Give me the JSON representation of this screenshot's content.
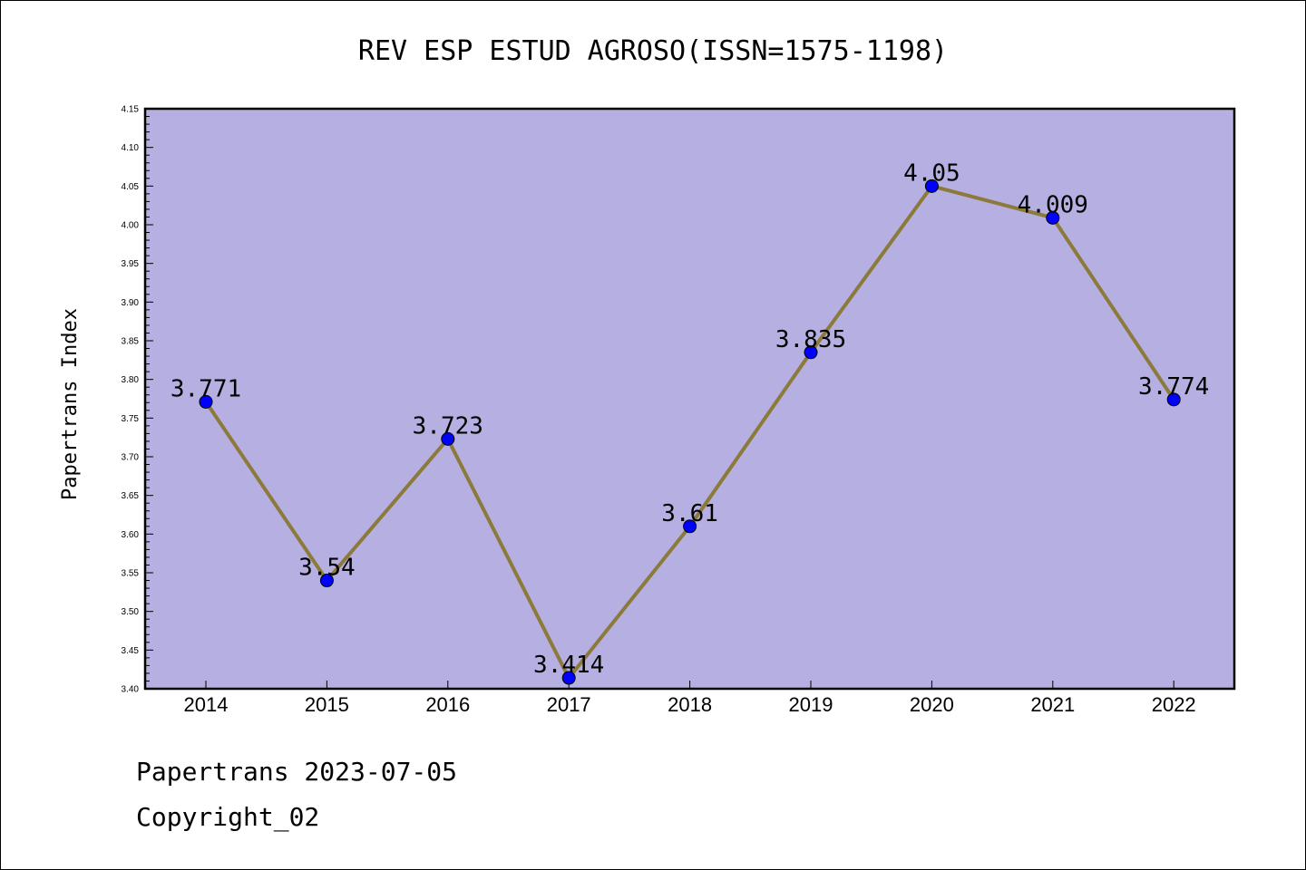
{
  "chart_data": {
    "type": "line",
    "title": "REV ESP ESTUD AGROSO(ISSN=1575-1198)",
    "xlabel": "",
    "ylabel": "Papertrans Index",
    "categories": [
      "2014",
      "2015",
      "2016",
      "2017",
      "2018",
      "2019",
      "2020",
      "2021",
      "2022"
    ],
    "series": [
      {
        "values": [
          3.771,
          3.54,
          3.723,
          3.414,
          3.61,
          3.835,
          4.05,
          4.009,
          3.774
        ],
        "labels": [
          "3.771",
          "3.54",
          "3.723",
          "3.414",
          "3.61",
          "3.835",
          "4.05",
          "4.009",
          "3.774"
        ]
      }
    ],
    "ylim": [
      3.4,
      4.15
    ],
    "yticks": [
      "3.40",
      "3.45",
      "3.50",
      "3.55",
      "3.60",
      "3.65",
      "3.70",
      "3.75",
      "3.80",
      "3.85",
      "3.90",
      "3.95",
      "4.00",
      "4.05",
      "4.10",
      "4.15"
    ],
    "grid": false,
    "legend": "none"
  },
  "colors": {
    "plot_background": "#b5afe2",
    "line": "#8b7a3a",
    "marker": "#0000ff",
    "axis": "#000000"
  },
  "footer": {
    "line1": "Papertrans 2023-07-05",
    "line2": "Copyright_02"
  }
}
